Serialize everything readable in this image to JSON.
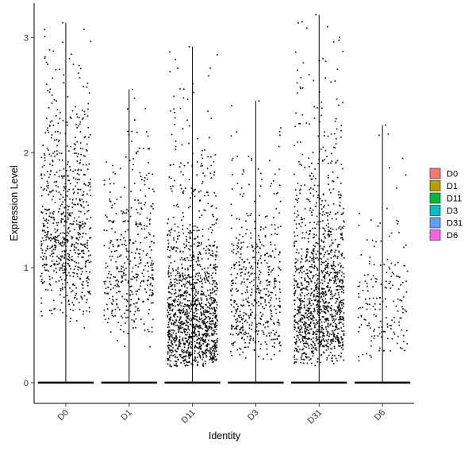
{
  "chart_data": {
    "type": "violin-jitter",
    "xlabel": "Identity",
    "ylabel": "Expression Level",
    "categories": [
      "D0",
      "D1",
      "D11",
      "D3",
      "D31",
      "D6"
    ],
    "ylim": [
      -0.18,
      3.3
    ],
    "yticks": [
      0,
      1,
      2,
      3
    ],
    "grid": false,
    "legend_position": "right",
    "legend": [
      {
        "label": "D0",
        "color": "#F8766D"
      },
      {
        "label": "D1",
        "color": "#B79F00"
      },
      {
        "label": "D11",
        "color": "#00BA38"
      },
      {
        "label": "D3",
        "color": "#00BFC4"
      },
      {
        "label": "D31",
        "color": "#619CFF"
      },
      {
        "label": "D6",
        "color": "#F564E3"
      }
    ],
    "groups": [
      {
        "name": "D0",
        "max": 3.13,
        "nonzero_points": 750,
        "nonzero_median": 1.35
      },
      {
        "name": "D1",
        "max": 2.55,
        "nonzero_points": 420,
        "nonzero_median": 1.0
      },
      {
        "name": "D11",
        "max": 2.92,
        "nonzero_points": 1350,
        "nonzero_median": 0.6
      },
      {
        "name": "D3",
        "max": 2.45,
        "nonzero_points": 520,
        "nonzero_median": 0.75
      },
      {
        "name": "D31",
        "max": 3.2,
        "nonzero_points": 1300,
        "nonzero_median": 0.75
      },
      {
        "name": "D6",
        "max": 2.24,
        "nonzero_points": 180,
        "nonzero_median": 0.7
      }
    ]
  }
}
